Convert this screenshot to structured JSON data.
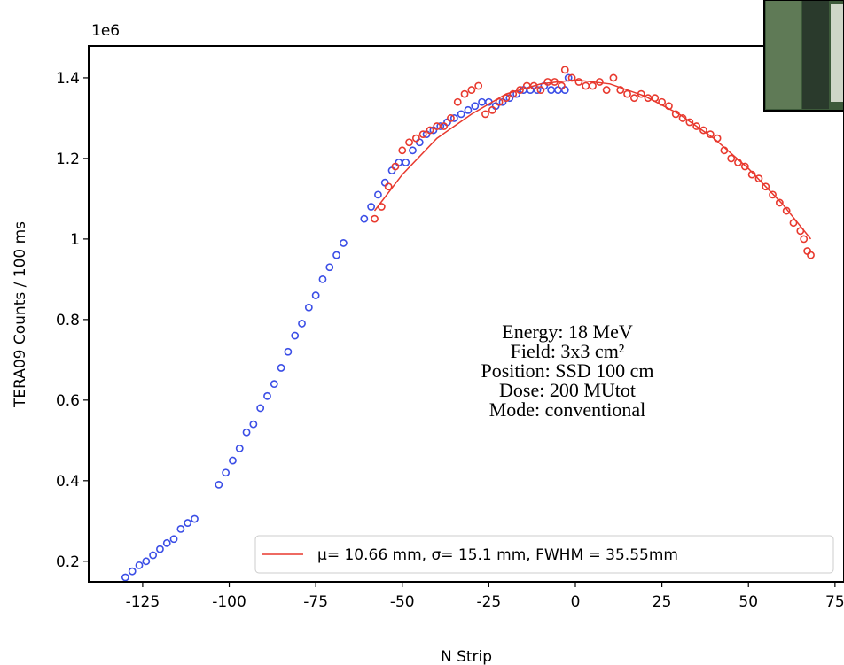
{
  "chart_data": {
    "type": "scatter",
    "offset_label": "1e6",
    "x_label": "N Strip",
    "y_label": "TERA09 Counts / 100 ms",
    "annotations": [
      "Energy: 18 MeV",
      "Field: 3x3 cm²",
      "Position: SSD 100 cm",
      "Dose: 200 MUtot",
      "Mode: conventional"
    ],
    "xlim": [
      -140.6,
      77.6
    ],
    "ylim": [
      0.149,
      1.479
    ],
    "xticks": [
      -125,
      -100,
      -75,
      -50,
      -25,
      0,
      25,
      50,
      75
    ],
    "yticks": [
      0.2,
      0.4,
      0.6,
      0.8,
      1.0,
      1.2,
      1.4
    ],
    "grid": false,
    "legend": "lower right",
    "series": [
      {
        "type": "scatter",
        "color": "#3b4ee6",
        "x": [
          -130,
          -128,
          -126,
          -124,
          -122,
          -120,
          -118,
          -116,
          -114,
          -112,
          -110,
          -103,
          -101,
          -99,
          -97,
          -95,
          -93,
          -91,
          -89,
          -87,
          -85,
          -83,
          -81,
          -79,
          -77,
          -75,
          -73,
          -71,
          -69,
          -67,
          -61,
          -59,
          -57,
          -55,
          -53,
          -51,
          -49,
          -47,
          -45,
          -43,
          -41,
          -39,
          -37,
          -35,
          -33,
          -31,
          -29,
          -27,
          -25,
          -23,
          -21,
          -19,
          -17,
          -15,
          -13,
          -11,
          -9,
          -7,
          -5,
          -3,
          -2
        ],
        "values": [
          0.16,
          0.175,
          0.19,
          0.2,
          0.215,
          0.23,
          0.245,
          0.255,
          0.28,
          0.295,
          0.305,
          0.39,
          0.42,
          0.45,
          0.48,
          0.52,
          0.54,
          0.58,
          0.61,
          0.64,
          0.68,
          0.72,
          0.76,
          0.79,
          0.83,
          0.86,
          0.9,
          0.93,
          0.96,
          0.99,
          1.05,
          1.08,
          1.11,
          1.14,
          1.17,
          1.19,
          1.19,
          1.22,
          1.24,
          1.26,
          1.27,
          1.28,
          1.29,
          1.3,
          1.31,
          1.32,
          1.33,
          1.34,
          1.34,
          1.33,
          1.34,
          1.35,
          1.36,
          1.37,
          1.37,
          1.37,
          1.38,
          1.37,
          1.37,
          1.37,
          1.4
        ]
      },
      {
        "type": "scatter",
        "color": "#e8392e",
        "x": [
          -58,
          -56,
          -54,
          -52,
          -50,
          -48,
          -46,
          -44,
          -42,
          -40,
          -38,
          -36,
          -34,
          -32,
          -30,
          -28,
          -26,
          -24,
          -22,
          -20,
          -18,
          -16,
          -14,
          -12,
          -10,
          -8,
          -6,
          -4,
          -3,
          -1,
          1,
          3,
          5,
          7,
          9,
          11,
          13,
          15,
          17,
          19,
          21,
          23,
          25,
          27,
          29,
          31,
          33,
          35,
          37,
          39,
          41,
          43,
          45,
          47,
          49,
          51,
          53,
          55,
          57,
          59,
          61,
          63,
          65,
          66,
          67,
          68
        ],
        "values": [
          1.05,
          1.08,
          1.13,
          1.18,
          1.22,
          1.24,
          1.25,
          1.26,
          1.27,
          1.28,
          1.28,
          1.3,
          1.34,
          1.36,
          1.37,
          1.38,
          1.31,
          1.32,
          1.34,
          1.35,
          1.36,
          1.37,
          1.38,
          1.38,
          1.37,
          1.39,
          1.39,
          1.38,
          1.42,
          1.4,
          1.39,
          1.38,
          1.38,
          1.39,
          1.37,
          1.4,
          1.37,
          1.36,
          1.35,
          1.36,
          1.35,
          1.35,
          1.34,
          1.33,
          1.31,
          1.3,
          1.29,
          1.28,
          1.27,
          1.26,
          1.25,
          1.22,
          1.2,
          1.19,
          1.18,
          1.16,
          1.15,
          1.13,
          1.11,
          1.09,
          1.07,
          1.04,
          1.02,
          1.0,
          0.97,
          0.96
        ]
      },
      {
        "type": "line",
        "color": "#e8392e",
        "name": "μ= 10.66 mm, σ= 15.1 mm, FWHM = 35.55mm",
        "x": [
          -58,
          -50,
          -40,
          -30,
          -20,
          -10,
          0,
          10,
          20,
          30,
          40,
          50,
          60,
          68
        ],
        "values": [
          1.07,
          1.16,
          1.25,
          1.31,
          1.36,
          1.385,
          1.395,
          1.385,
          1.355,
          1.31,
          1.25,
          1.175,
          1.085,
          1.0
        ]
      }
    ]
  }
}
